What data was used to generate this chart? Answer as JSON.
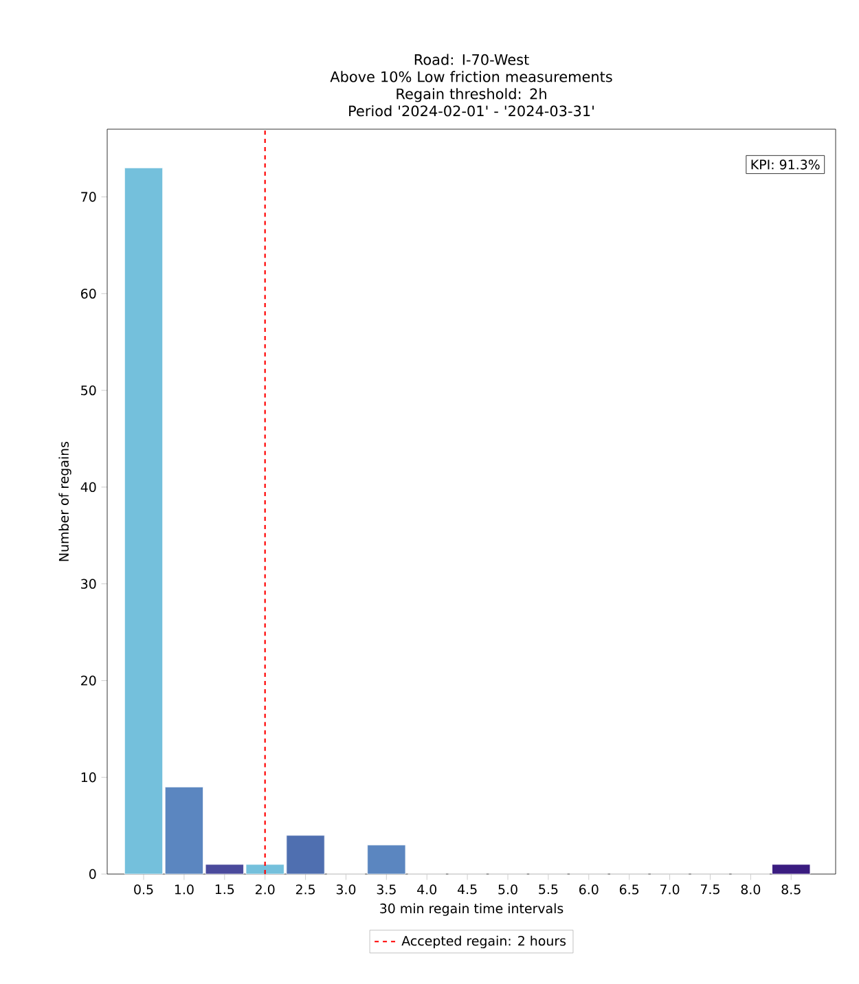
{
  "chart_data": {
    "type": "bar",
    "title": "Road: I-70-West\nAbove 10% Low friction measurements\nRegain threshold: 2h\nPeriod '2024-02-01' - '2024-03-31'",
    "xlabel": "30 min regain time intervals",
    "ylabel": "Number of regains",
    "x": [
      0.5,
      1.0,
      1.5,
      2.0,
      2.5,
      3.0,
      3.5,
      4.0,
      4.5,
      5.0,
      5.5,
      6.0,
      6.5,
      7.0,
      7.5,
      8.0,
      8.5
    ],
    "values": [
      73,
      9,
      1,
      1,
      4,
      0,
      3,
      0,
      0,
      0,
      0,
      0,
      0,
      0,
      0,
      0,
      1
    ],
    "colors": [
      "#74c0dc",
      "#5b86c0",
      "#4a4a9c",
      "#74c0dc",
      "#4f6fb0",
      "#5b86c0",
      "#5b86c0",
      "#5b86c0",
      "#5b86c0",
      "#5b86c0",
      "#5b86c0",
      "#5b86c0",
      "#5b86c0",
      "#5b86c0",
      "#5b86c0",
      "#5b86c0",
      "#3a1c80"
    ],
    "xlim": [
      0.05,
      9.05
    ],
    "ylim": [
      0,
      77
    ],
    "xticks": [
      {
        "value": 0.5,
        "label": "0.5"
      },
      {
        "value": 1.0,
        "label": "1.0"
      },
      {
        "value": 1.5,
        "label": "1.5"
      },
      {
        "value": 2.0,
        "label": "2.0"
      },
      {
        "value": 2.5,
        "label": "2.5"
      },
      {
        "value": 3.0,
        "label": "3.0"
      },
      {
        "value": 3.5,
        "label": "3.5"
      },
      {
        "value": 4.0,
        "label": "4.0"
      },
      {
        "value": 4.5,
        "label": "4.5"
      },
      {
        "value": 5.0,
        "label": "5.0"
      },
      {
        "value": 5.5,
        "label": "5.5"
      },
      {
        "value": 6.0,
        "label": "6.0"
      },
      {
        "value": 6.5,
        "label": "6.5"
      },
      {
        "value": 7.0,
        "label": "7.0"
      },
      {
        "value": 7.5,
        "label": "7.5"
      },
      {
        "value": 8.0,
        "label": "8.0"
      },
      {
        "value": 8.5,
        "label": "8.5"
      }
    ],
    "yticks": [
      0,
      10,
      20,
      30,
      40,
      50,
      60,
      70
    ],
    "ref_lines": [
      {
        "axis": "x",
        "value": 2.0,
        "label": "Accepted regain: 2 hours",
        "color": "#ff0000",
        "line_style": "dashed"
      }
    ],
    "annotations": [
      "KPI: 91.3%"
    ],
    "legend": "bottom"
  }
}
